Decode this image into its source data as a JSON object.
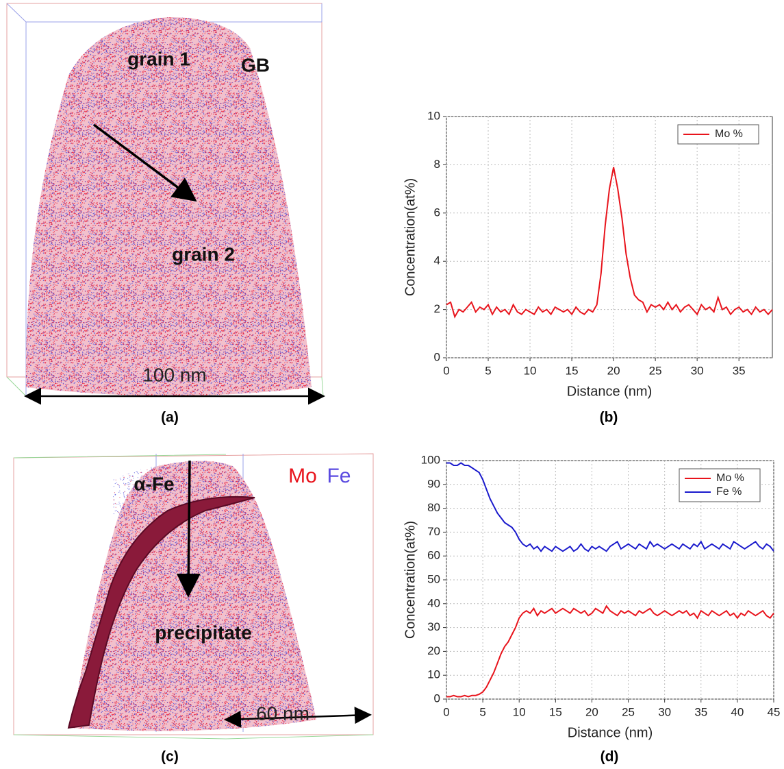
{
  "panels": [
    {
      "label": "(a)",
      "texts": [
        "grain 1",
        "GB",
        "grain 2",
        "100 nm"
      ]
    },
    {
      "label": "(c)",
      "texts": [
        "α-Fe",
        "Mo",
        "Fe",
        "precipitate",
        "60 nm"
      ]
    }
  ],
  "chart_data": [
    {
      "type": "line",
      "panel_label": "(b)",
      "xlabel": "Distance (nm)",
      "ylabel": "Concentration(at%)",
      "xlim": [
        0,
        39
      ],
      "xticks": [
        0,
        5,
        10,
        15,
        20,
        25,
        30,
        35
      ],
      "ylim": [
        0,
        10
      ],
      "yticks": [
        0,
        2,
        4,
        6,
        8,
        10
      ],
      "grid": true,
      "legend": "upper right",
      "x": [
        0,
        0.5,
        1,
        1.5,
        2,
        2.5,
        3,
        3.5,
        4,
        4.5,
        5,
        5.5,
        6,
        6.5,
        7,
        7.5,
        8,
        8.5,
        9,
        9.5,
        10,
        10.5,
        11,
        11.5,
        12,
        12.5,
        13,
        13.5,
        14,
        14.5,
        15,
        15.5,
        16,
        16.5,
        17,
        17.5,
        18,
        18.5,
        19,
        19.5,
        20,
        20.5,
        21,
        21.5,
        22,
        22.5,
        23,
        23.5,
        24,
        24.5,
        25,
        25.5,
        26,
        26.5,
        27,
        27.5,
        28,
        28.5,
        29,
        29.5,
        30,
        30.5,
        31,
        31.5,
        32,
        32.5,
        33,
        33.5,
        34,
        34.5,
        35,
        35.5,
        36,
        36.5,
        37,
        37.5,
        38,
        38.5,
        39
      ],
      "series": [
        {
          "name": "Mo %",
          "color": "#e8141c",
          "values": [
            2.2,
            2.3,
            1.7,
            2.0,
            1.9,
            2.1,
            2.3,
            1.9,
            2.1,
            2.0,
            2.2,
            1.8,
            2.1,
            1.9,
            2.0,
            1.8,
            2.2,
            1.9,
            1.8,
            2.0,
            1.9,
            1.8,
            2.1,
            1.9,
            2.0,
            1.8,
            2.1,
            2.0,
            1.9,
            2.0,
            1.8,
            2.1,
            1.9,
            1.8,
            2.0,
            1.9,
            2.2,
            3.5,
            5.5,
            7.0,
            7.9,
            7.0,
            5.8,
            4.3,
            3.3,
            2.6,
            2.4,
            2.3,
            1.9,
            2.2,
            2.1,
            2.2,
            2.0,
            2.3,
            2.0,
            2.2,
            1.9,
            2.1,
            2.2,
            2.0,
            1.8,
            2.2,
            2.0,
            2.1,
            1.9,
            2.5,
            2.0,
            2.1,
            1.8,
            2.0,
            2.1,
            1.9,
            2.0,
            1.8,
            2.1,
            1.9,
            2.0,
            1.8,
            2.0
          ]
        }
      ]
    },
    {
      "type": "line",
      "panel_label": "(d)",
      "xlabel": "Distance (nm)",
      "ylabel": "Concentration(at%)",
      "xlim": [
        0,
        45
      ],
      "xticks": [
        0,
        5,
        10,
        15,
        20,
        25,
        30,
        35,
        40,
        45
      ],
      "ylim": [
        0,
        100
      ],
      "yticks": [
        0,
        10,
        20,
        30,
        40,
        50,
        60,
        70,
        80,
        90,
        100
      ],
      "grid": true,
      "legend": "upper right",
      "x": [
        0,
        0.5,
        1,
        1.5,
        2,
        2.5,
        3,
        3.5,
        4,
        4.5,
        5,
        5.5,
        6,
        6.5,
        7,
        7.5,
        8,
        8.5,
        9,
        9.5,
        10,
        10.5,
        11,
        11.5,
        12,
        12.5,
        13,
        13.5,
        14,
        14.5,
        15,
        15.5,
        16,
        16.5,
        17,
        17.5,
        18,
        18.5,
        19,
        19.5,
        20,
        20.5,
        21,
        21.5,
        22,
        22.5,
        23,
        23.5,
        24,
        24.5,
        25,
        25.5,
        26,
        26.5,
        27,
        27.5,
        28,
        28.5,
        29,
        29.5,
        30,
        30.5,
        31,
        31.5,
        32,
        32.5,
        33,
        33.5,
        34,
        34.5,
        35,
        35.5,
        36,
        36.5,
        37,
        37.5,
        38,
        38.5,
        39,
        39.5,
        40,
        40.5,
        41,
        41.5,
        42,
        42.5,
        43,
        43.5,
        44,
        44.5,
        45
      ],
      "series": [
        {
          "name": "Mo %",
          "color": "#e8141c",
          "values": [
            1,
            1,
            1.5,
            1,
            1,
            1.5,
            1,
            1.5,
            1.5,
            2,
            3,
            5,
            8,
            11,
            15,
            19,
            22,
            24,
            27,
            30,
            34,
            36,
            37,
            36,
            38,
            35,
            37,
            36,
            37,
            38,
            36,
            37,
            38,
            37,
            36,
            38,
            37,
            36,
            37,
            35,
            36,
            38,
            37,
            36,
            39,
            37,
            36,
            35,
            37,
            36,
            37,
            36,
            35,
            37,
            36,
            37,
            38,
            36,
            35,
            36,
            37,
            36,
            35,
            36,
            37,
            36,
            37,
            35,
            36,
            34,
            37,
            36,
            35,
            37,
            36,
            35,
            36,
            37,
            35,
            36,
            34,
            36,
            35,
            37,
            36,
            35,
            36,
            37,
            35,
            34,
            36
          ]
        },
        {
          "name": "Fe %",
          "color": "#1a1acc",
          "values": [
            99,
            99,
            98,
            98,
            99,
            98,
            98,
            97,
            96,
            95,
            92,
            88,
            84,
            81,
            78,
            76,
            74,
            73,
            72,
            70,
            67,
            65,
            64,
            65,
            63,
            64,
            62,
            64,
            63,
            62,
            64,
            63,
            62,
            63,
            64,
            62,
            63,
            65,
            63,
            62,
            64,
            63,
            64,
            63,
            62,
            64,
            65,
            66,
            63,
            64,
            65,
            64,
            63,
            65,
            64,
            63,
            66,
            64,
            65,
            64,
            63,
            64,
            65,
            64,
            63,
            65,
            64,
            63,
            65,
            64,
            66,
            63,
            64,
            65,
            64,
            63,
            65,
            64,
            63,
            66,
            65,
            64,
            63,
            64,
            65,
            66,
            64,
            63,
            65,
            64,
            62
          ]
        }
      ]
    }
  ]
}
